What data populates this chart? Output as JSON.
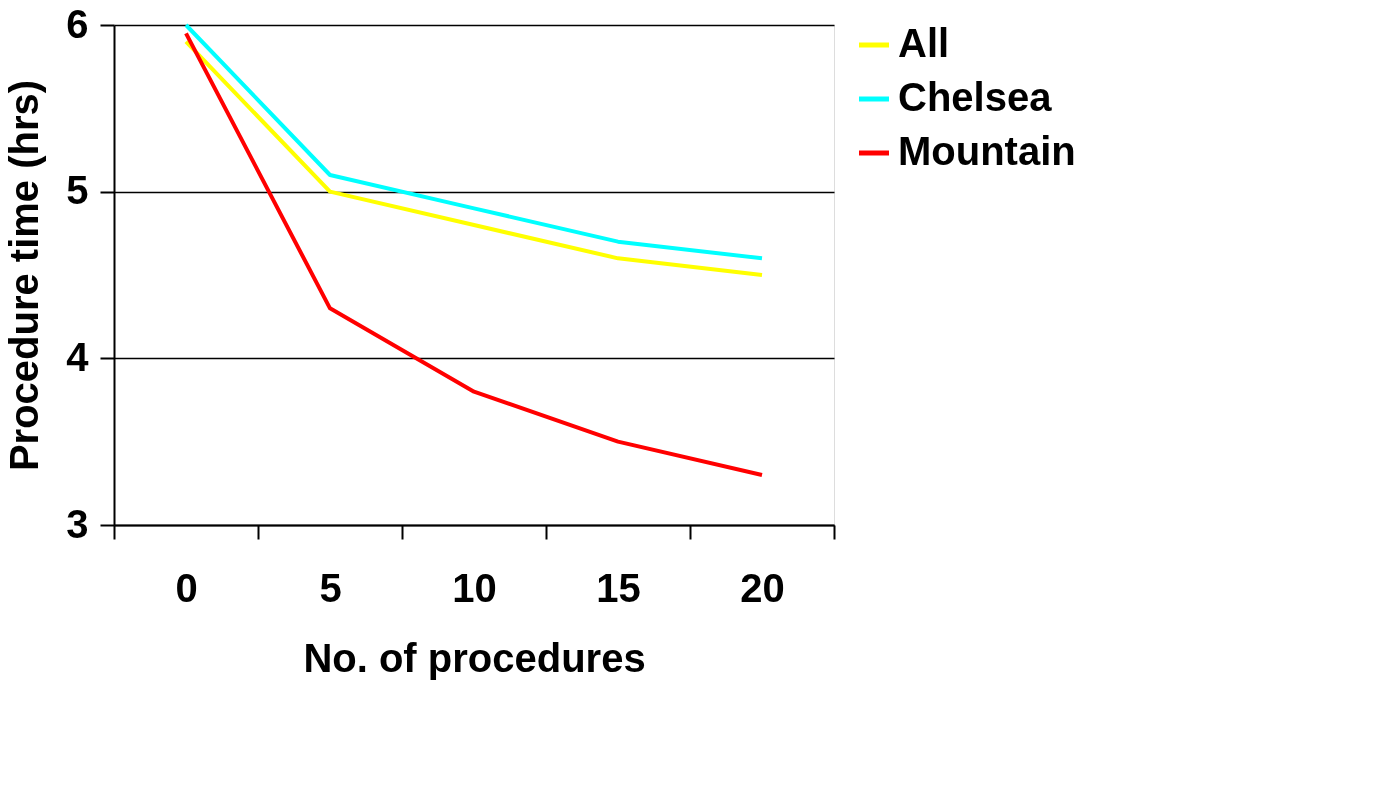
{
  "chart_data": {
    "type": "line",
    "xlabel": "No. of procedures",
    "ylabel": "Procedure time (hrs)",
    "categories": [
      "0",
      "5",
      "10",
      "15",
      "20"
    ],
    "series": [
      {
        "name": "All",
        "color": "#ffff00",
        "values": [
          5.9,
          5.0,
          4.8,
          4.6,
          4.5
        ]
      },
      {
        "name": "Chelsea",
        "color": "#00ffff",
        "values": [
          6.0,
          5.1,
          4.9,
          4.7,
          4.6
        ]
      },
      {
        "name": "Mountain",
        "color": "#ff0000",
        "values": [
          5.95,
          4.3,
          3.8,
          3.5,
          3.3
        ]
      }
    ],
    "ylim": [
      3,
      6
    ],
    "yticks": [
      3,
      4,
      5,
      6
    ],
    "grid": "y",
    "legend": "right",
    "marker": "none",
    "line_style": "solid"
  }
}
